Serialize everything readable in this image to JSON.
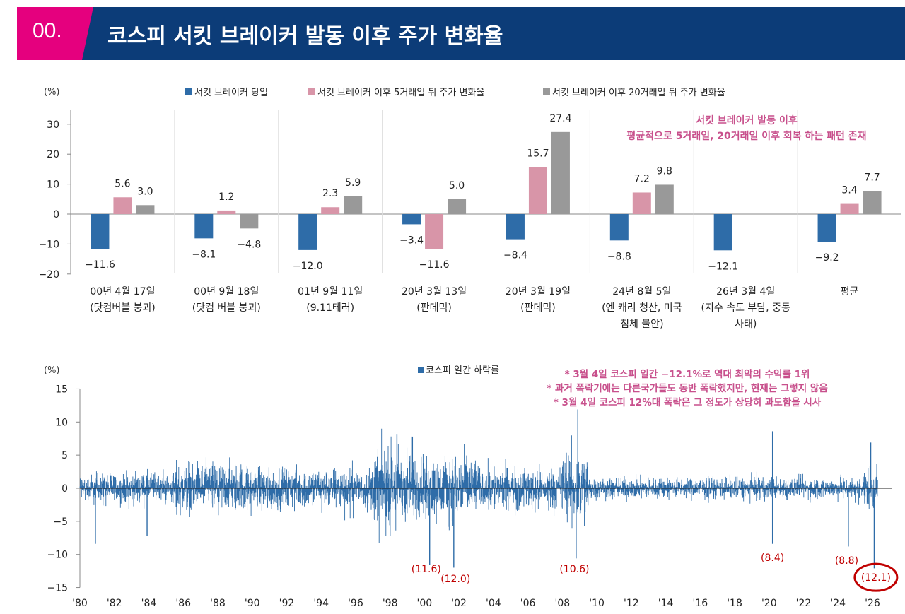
{
  "header": {
    "number": "00.",
    "title": "코스피 서킷 브레이커 발동 이후 주가 변화율"
  },
  "colors": {
    "pink": "#e5007e",
    "navy": "#0c3c78",
    "series1": "#2e6ca8",
    "series2": "#d895a8",
    "series3": "#999999",
    "annotation": "#c8508c",
    "red": "#c00000"
  },
  "chart_data": [
    {
      "type": "bar",
      "unit": "(%)",
      "ylim": [
        -20,
        30
      ],
      "yticks": [
        "−20",
        "−10",
        "0",
        "10",
        "20",
        "30"
      ],
      "categories": [
        [
          "00년 4월 17일",
          "(닷컴버블 붕괴)"
        ],
        [
          "00년 9월 18일",
          "(닷컴 버블 붕괴)"
        ],
        [
          "01년 9월 11일",
          "(9.11테러)"
        ],
        [
          "20년 3월 13일",
          "(판데믹)"
        ],
        [
          "20년 3월 19일",
          "(판데믹)"
        ],
        [
          "24년 8월 5일",
          "(엔 캐리 청산, 미국",
          "침체 불안)"
        ],
        [
          "26년 3월 4일",
          "(지수 속도 부담, 중동",
          "사태)"
        ],
        [
          "평균"
        ]
      ],
      "series": [
        {
          "name": "서킷 브레이커 당일",
          "values": [
            -11.6,
            -8.1,
            -12.0,
            -3.4,
            -8.4,
            -8.8,
            -12.1,
            -9.2
          ],
          "labels": [
            "−11.6",
            "−8.1",
            "−12.0",
            "−3.4",
            "−8.4",
            "−8.8",
            "−12.1",
            "−9.2"
          ]
        },
        {
          "name": "서킷 브레이커 이후 5거래일 뒤 주가 변화율",
          "values": [
            5.6,
            1.2,
            2.3,
            -11.6,
            15.7,
            7.2,
            null,
            3.4
          ],
          "labels": [
            "5.6",
            "1.2",
            "2.3",
            "−11.6",
            "15.7",
            "7.2",
            null,
            "3.4"
          ]
        },
        {
          "name": "서킷 브레이커 이후 20거래일 뒤 주가 변화율",
          "values": [
            3.0,
            -4.8,
            5.9,
            5.0,
            27.4,
            9.8,
            null,
            7.7
          ],
          "labels": [
            "3.0",
            "−4.8",
            "5.9",
            "5.0",
            "27.4",
            "9.8",
            null,
            "7.7"
          ]
        }
      ],
      "annotation": [
        "서킷 브레이커 발동 이후",
        "평균적으로 5거래일, 20거래일 이후 회복 하는 패턴 존재"
      ]
    },
    {
      "type": "bar",
      "unit": "(%)",
      "ylim": [
        -15,
        15
      ],
      "yticks": [
        "−15",
        "−10",
        "−5",
        "0",
        "5",
        "10",
        "15"
      ],
      "series": [
        {
          "name": "코스피 일간 하락률"
        }
      ],
      "xrange": [
        1980,
        2026.3
      ],
      "xticks": [
        "'80",
        "'82",
        "'84",
        "'86",
        "'88",
        "'90",
        "'92",
        "'94",
        "'96",
        "'98",
        "'00",
        "'02",
        "'04",
        "'06",
        "'08",
        "'10",
        "'12",
        "'14",
        "'16",
        "'18",
        "'20",
        "'22",
        "'24",
        "'26"
      ],
      "annotations": [
        "* 3월 4일 코스피 일간 −12.1%로   역대 최악의 수익률 1위",
        "* 과거 폭락기에는 다른국가들도 동반 폭락했지만, 현재는 그렇지 않음",
        "* 3월 4일 코스피 12%대 폭락은 그 정도가 상당히 과도함을 시사"
      ],
      "volatility_regimes": [
        {
          "from": 1980,
          "to": 1985.5,
          "amp": 1.8
        },
        {
          "from": 1985.5,
          "to": 1990,
          "amp": 3.0
        },
        {
          "from": 1990,
          "to": 1997,
          "amp": 2.5
        },
        {
          "from": 1997,
          "to": 1999,
          "amp": 5.0
        },
        {
          "from": 1999,
          "to": 2003,
          "amp": 4.0
        },
        {
          "from": 2003,
          "to": 2008,
          "amp": 2.5
        },
        {
          "from": 2008,
          "to": 2009.5,
          "amp": 4.5
        },
        {
          "from": 2009.5,
          "to": 2025.5,
          "amp": 1.3
        },
        {
          "from": 2025.5,
          "to": 2026.3,
          "amp": 2.5
        }
      ],
      "spikes": [
        {
          "x": 1980.9,
          "y": -8.4
        },
        {
          "x": 1983.9,
          "y": -7.2
        },
        {
          "x": 1998.4,
          "y": 8.2
        },
        {
          "x": 1999.3,
          "y": 7.8
        },
        {
          "x": 2000.3,
          "y": -11.6
        },
        {
          "x": 2001.7,
          "y": -12.0
        },
        {
          "x": 2008.8,
          "y": -10.6
        },
        {
          "x": 2008.9,
          "y": 11.9
        },
        {
          "x": 2020.2,
          "y": -8.4
        },
        {
          "x": 2020.2,
          "y": 8.6
        },
        {
          "x": 2024.6,
          "y": -8.8
        },
        {
          "x": 2026.1,
          "y": -12.1
        },
        {
          "x": 2025.9,
          "y": 6.9
        }
      ],
      "callouts": [
        {
          "x": 2000.1,
          "y": -12.7,
          "text": "(11.6)"
        },
        {
          "x": 2001.8,
          "y": -14.2,
          "text": "(12.0)"
        },
        {
          "x": 2008.7,
          "y": -12.7,
          "text": "(10.6)"
        },
        {
          "x": 2020.2,
          "y": -11.0,
          "text": "(8.4)"
        },
        {
          "x": 2024.5,
          "y": -11.4,
          "text": "(8.8)"
        },
        {
          "x": 2026.2,
          "y": -14.0,
          "text": "(12.1)",
          "circled": true
        }
      ]
    }
  ]
}
